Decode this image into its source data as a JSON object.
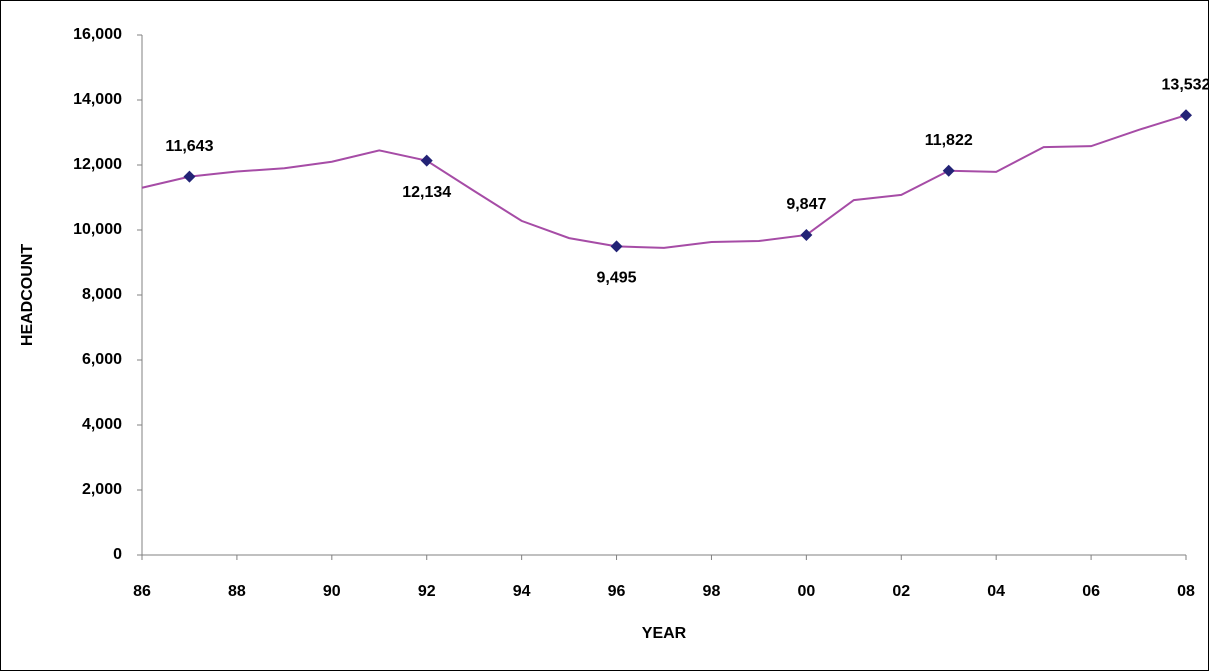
{
  "chart_data": {
    "type": "line",
    "x_label": "YEAR",
    "y_label": "HEADCOUNT",
    "categories": [
      "86",
      null,
      "88",
      null,
      "90",
      null,
      "92",
      null,
      "94",
      null,
      "96",
      null,
      "98",
      null,
      "00",
      null,
      "02",
      null,
      "04",
      null,
      "06",
      null,
      "08"
    ],
    "series": [
      {
        "color": "#a64ca6",
        "marker_color": "#232376",
        "values": [
          11300,
          11643,
          11800,
          11900,
          12100,
          12450,
          12134,
          11200,
          10280,
          9750,
          9495,
          9450,
          9630,
          9660,
          9847,
          10920,
          11080,
          11822,
          11790,
          12550,
          12580,
          13080,
          13532
        ],
        "value_labels": [
          null,
          "11,643",
          null,
          null,
          null,
          null,
          "12,134",
          null,
          null,
          null,
          "9,495",
          null,
          null,
          null,
          "9,847",
          null,
          null,
          "11,822",
          null,
          null,
          null,
          null,
          "13,532"
        ]
      }
    ],
    "ylim": [
      0,
      16000
    ],
    "yticks": [
      0,
      {
        "value": 2000,
        "label": "2,000"
      },
      {
        "value": 4000,
        "label": "4,000"
      },
      {
        "value": 6000,
        "label": "6,000"
      },
      {
        "value": 8000,
        "label": "8,000"
      },
      {
        "value": 10000,
        "label": "10,000"
      },
      {
        "value": 12000,
        "label": "12,000"
      },
      {
        "value": 14000,
        "label": "14,000"
      },
      {
        "value": 16000,
        "label": "16,000"
      }
    ],
    "grid": false
  }
}
